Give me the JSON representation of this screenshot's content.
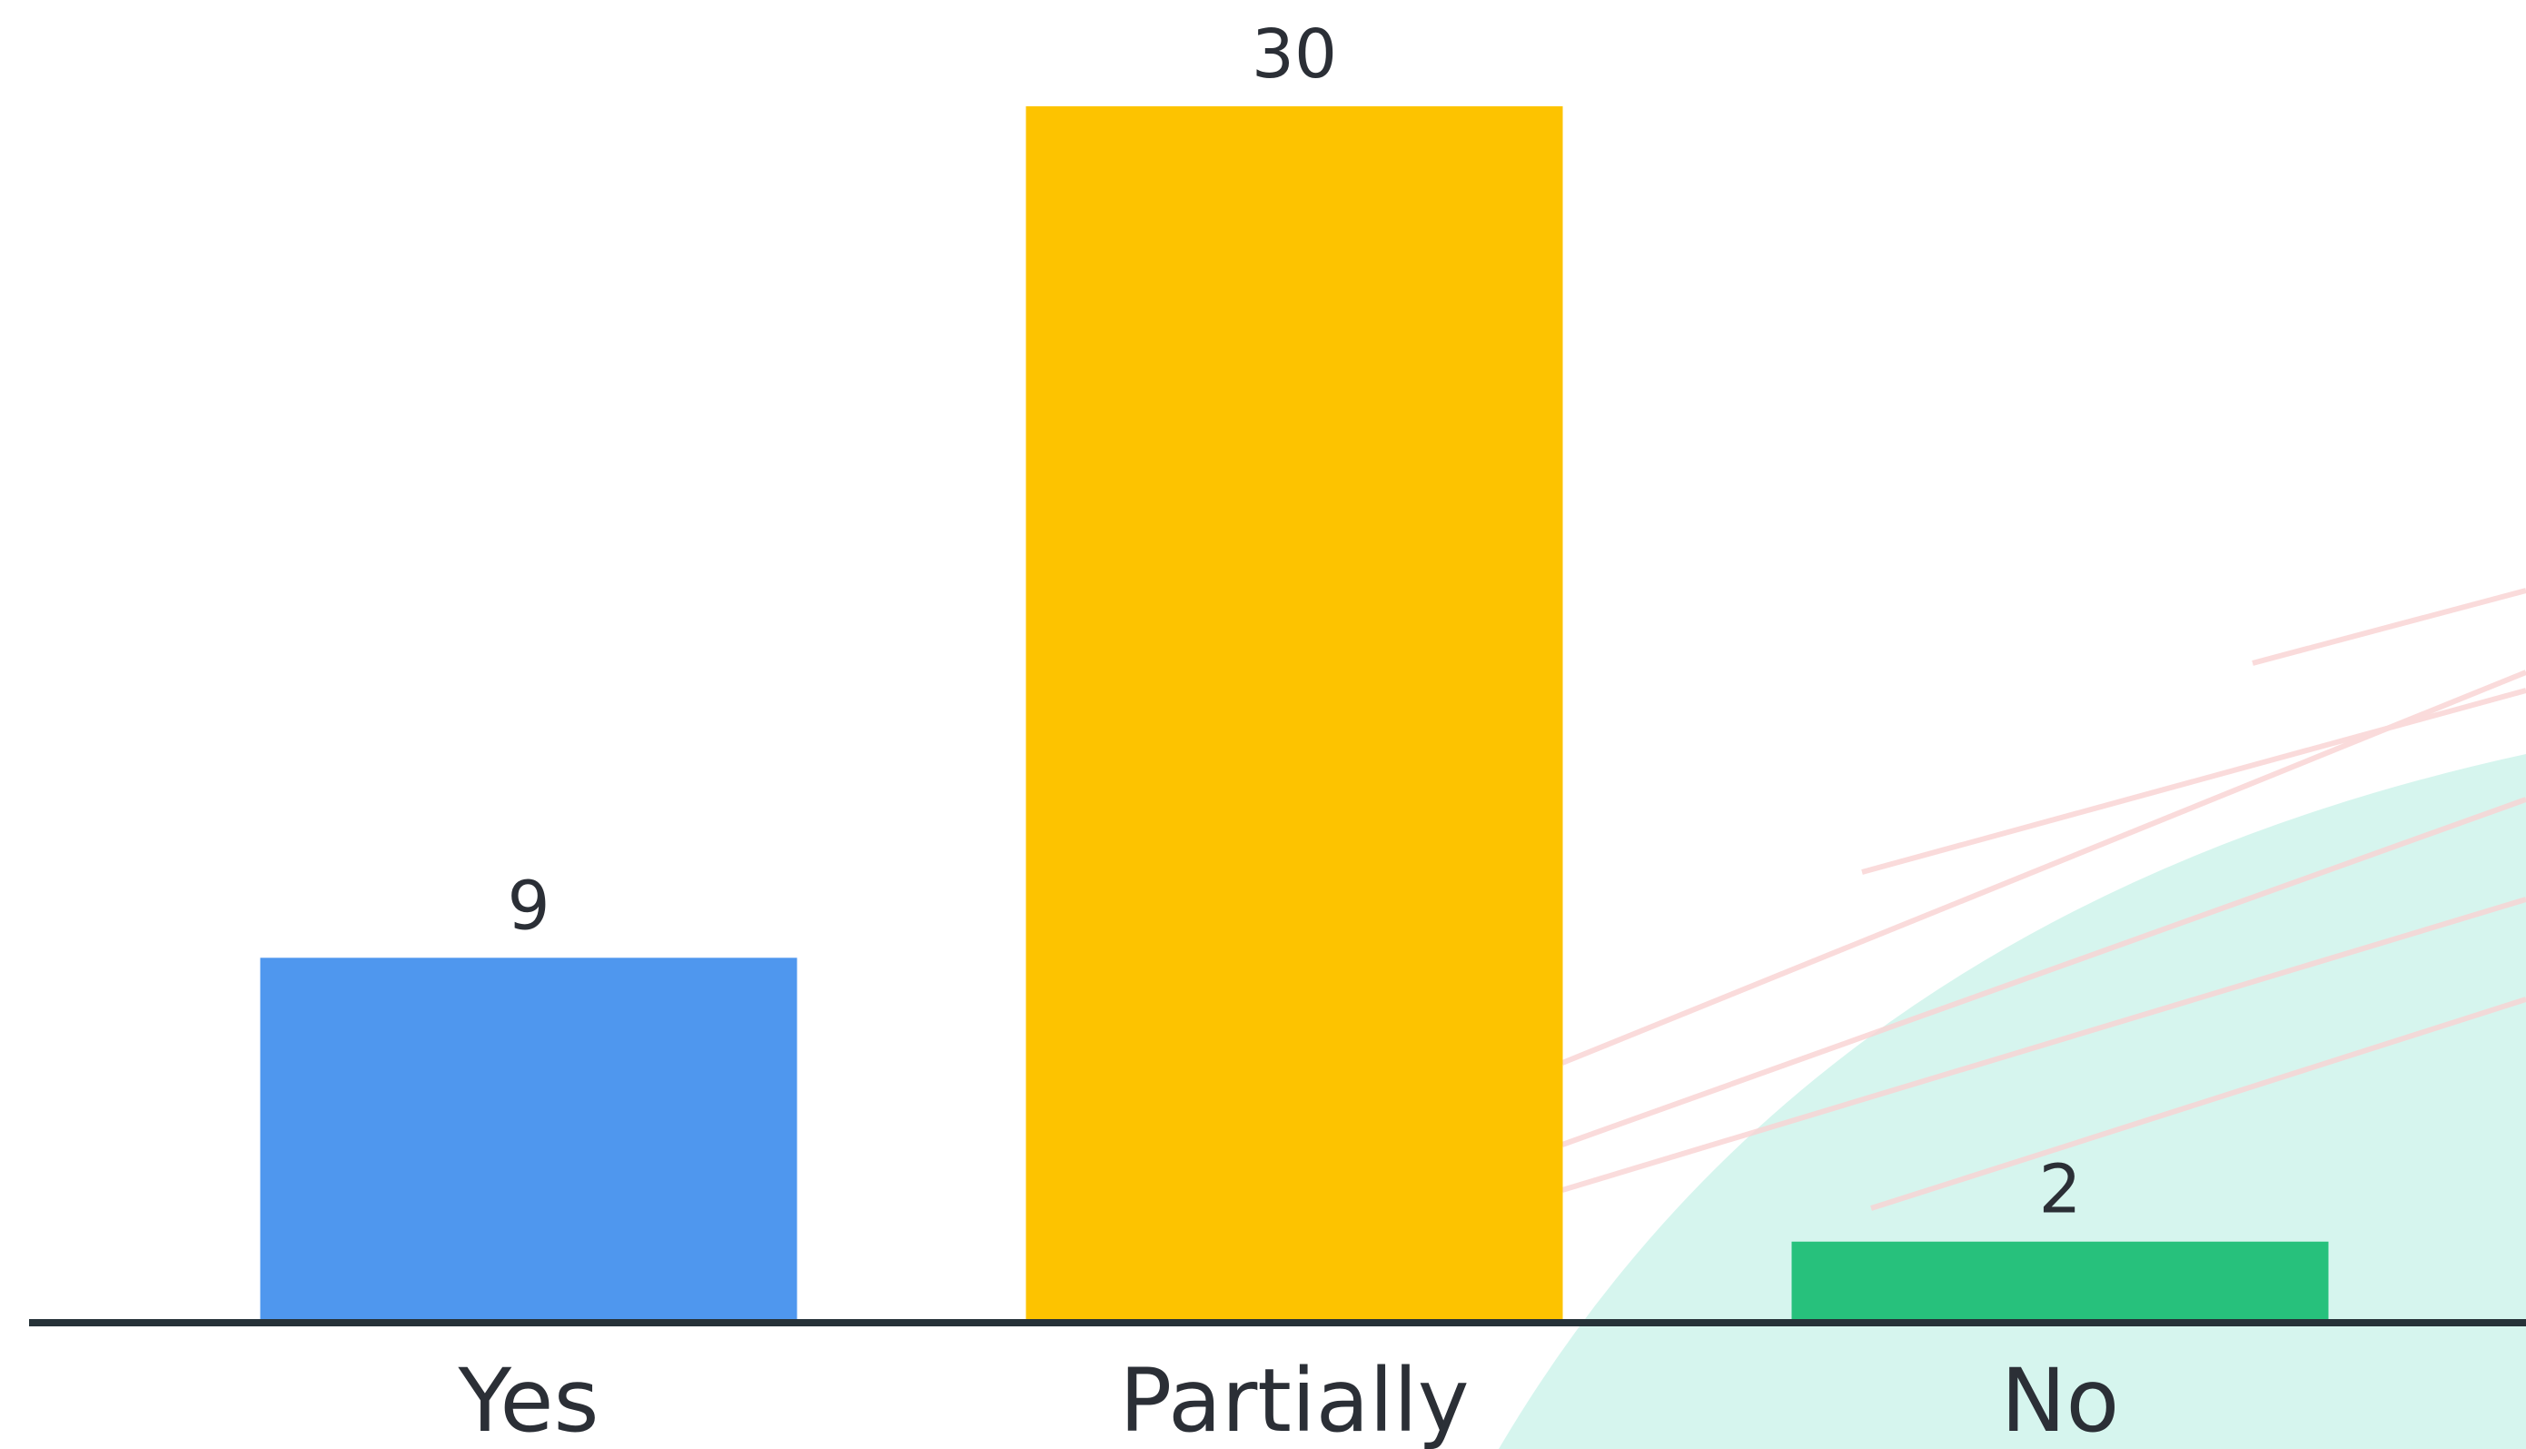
{
  "chart_data": {
    "type": "bar",
    "categories": [
      "Yes",
      "Partially",
      "No"
    ],
    "values": [
      9,
      30,
      2
    ],
    "colors": [
      "#4f97ee",
      "#fdc300",
      "#27c17c"
    ],
    "ylim": [
      0,
      30
    ]
  }
}
